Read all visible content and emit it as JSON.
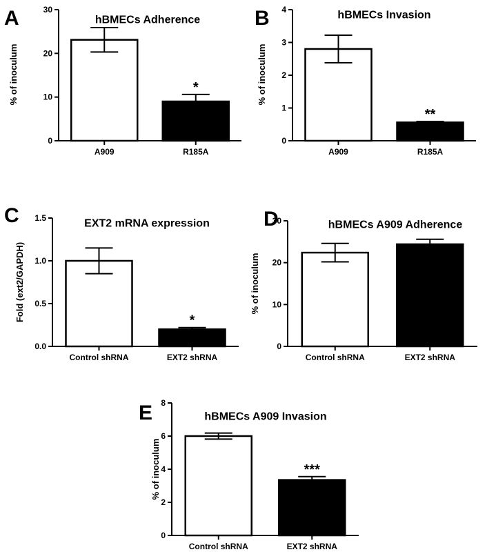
{
  "figure": {
    "panels": [
      "A",
      "B",
      "C",
      "D",
      "E"
    ]
  },
  "chart_data": [
    {
      "panel": "A",
      "type": "bar",
      "title": "hBMECs Adherence",
      "xlabel": "",
      "ylabel": "% of inoculum",
      "categories": [
        "A909",
        "R185A"
      ],
      "values": [
        23.1,
        9.0
      ],
      "errors": [
        2.8,
        1.6
      ],
      "fills": [
        "#ffffff",
        "#000000"
      ],
      "significance": [
        "",
        "*"
      ],
      "ylim": [
        0,
        30
      ],
      "yticks": [
        0,
        10,
        20,
        30
      ],
      "grid": false
    },
    {
      "panel": "B",
      "type": "bar",
      "title": "hBMECs Invasion",
      "xlabel": "",
      "ylabel": "% of inoculum",
      "categories": [
        "A909",
        "R185A"
      ],
      "values": [
        2.8,
        0.56
      ],
      "errors": [
        0.42,
        0.03
      ],
      "fills": [
        "#ffffff",
        "#000000"
      ],
      "significance": [
        "",
        "**"
      ],
      "ylim": [
        0,
        4
      ],
      "yticks": [
        0,
        1,
        2,
        3,
        4
      ],
      "grid": false
    },
    {
      "panel": "C",
      "type": "bar",
      "title": "EXT2 mRNA expression",
      "xlabel": "",
      "ylabel": "Fold (ext2/GAPDH)",
      "categories": [
        "Control shRNA",
        "EXT2 shRNA"
      ],
      "values": [
        1.0,
        0.2
      ],
      "errors": [
        0.15,
        0.02
      ],
      "fills": [
        "#ffffff",
        "#000000"
      ],
      "significance": [
        "",
        "*"
      ],
      "ylim": [
        0,
        1.5
      ],
      "yticks": [
        "0.0",
        "0.5",
        "1.0",
        "1.5"
      ],
      "grid": false
    },
    {
      "panel": "D",
      "type": "bar",
      "title": "hBMECs A909 Adherence",
      "xlabel": "",
      "ylabel": "% of inoculum",
      "categories": [
        "Control shRNA",
        "EXT2 shRNA"
      ],
      "values": [
        22.4,
        24.4
      ],
      "errors": [
        2.2,
        1.2
      ],
      "fills": [
        "#ffffff",
        "#000000"
      ],
      "significance": [
        "",
        ""
      ],
      "ylim": [
        0,
        30
      ],
      "yticks": [
        0,
        10,
        20,
        30
      ],
      "grid": false
    },
    {
      "panel": "E",
      "type": "bar",
      "title": "hBMECs A909 Invasion",
      "xlabel": "",
      "ylabel": "% of inoculum",
      "categories": [
        "Control shRNA",
        "EXT2 shRNA"
      ],
      "values": [
        6.0,
        3.35
      ],
      "errors": [
        0.18,
        0.2
      ],
      "fills": [
        "#ffffff",
        "#000000"
      ],
      "significance": [
        "",
        "***"
      ],
      "ylim": [
        0,
        8
      ],
      "yticks": [
        0,
        2,
        4,
        6,
        8
      ],
      "grid": false
    }
  ]
}
